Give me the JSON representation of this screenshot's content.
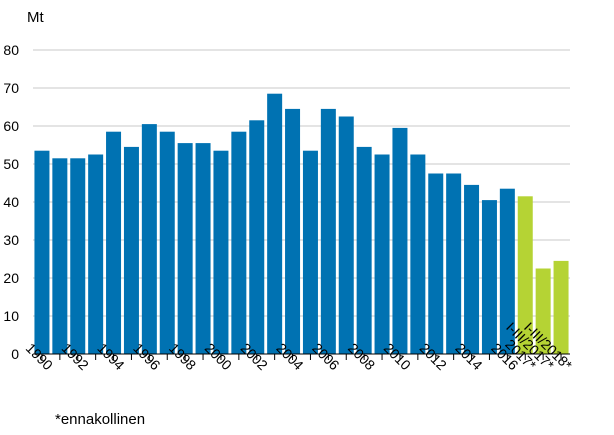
{
  "chart_data": {
    "type": "bar",
    "unit_label": "Mt",
    "footnote": "*ennakollinen",
    "categories": [
      "1990",
      "1991",
      "1992",
      "1993",
      "1994",
      "1995",
      "1996",
      "1997",
      "1998",
      "1999",
      "2000",
      "2001",
      "2002",
      "2003",
      "2004",
      "2005",
      "2006",
      "2007",
      "2008",
      "2009",
      "2010",
      "2011",
      "2012",
      "2013",
      "2014",
      "2015",
      "2016",
      "2017*",
      "I-III/2017*",
      "I-III/2018*"
    ],
    "x_tick_labels": [
      "1990",
      "",
      "1992",
      "",
      "1994",
      "",
      "1996",
      "",
      "1998",
      "",
      "2000",
      "",
      "2002",
      "",
      "2004",
      "",
      "2006",
      "",
      "2008",
      "",
      "2010",
      "",
      "2012",
      "",
      "2014",
      "",
      "2016",
      "2017*",
      "I-III/2017*",
      "I-III/2018*"
    ],
    "values": [
      53.5,
      51.5,
      51.5,
      52.5,
      58.5,
      54.5,
      60.5,
      58.5,
      55.5,
      55.5,
      53.5,
      58.5,
      61.5,
      68.5,
      64.5,
      53.5,
      64.5,
      62.5,
      54.5,
      52.5,
      59.5,
      52.5,
      47.5,
      47.5,
      44.5,
      40.5,
      43.5,
      41.5,
      22.5,
      24.5
    ],
    "highlight_categories": [
      "2017*",
      "I-III/2017*",
      "I-III/2018*"
    ],
    "ylim": [
      0,
      80
    ],
    "y_ticks": [
      0,
      10,
      20,
      30,
      40,
      50,
      60,
      70,
      80
    ],
    "grid": true,
    "colors": {
      "bar": "#0072B2",
      "highlight": "#B5D334",
      "grid": "#c8c8c8",
      "axis": "#000000"
    }
  }
}
